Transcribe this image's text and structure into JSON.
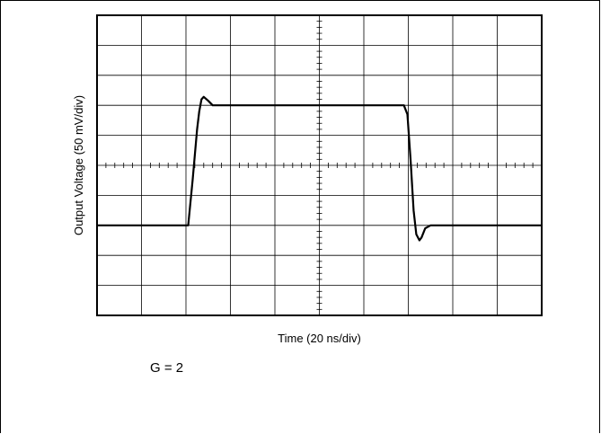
{
  "chart_data": {
    "type": "line",
    "title": "",
    "xlabel": "Time (20 ns/div)",
    "ylabel": "Output Voltage (50 mV/div)",
    "xlim": [
      0,
      10
    ],
    "ylim": [
      -5,
      5
    ],
    "grid": true,
    "annotation": "G = 2",
    "series": [
      {
        "x": [
          0,
          2.05,
          2.15,
          2.25,
          2.3,
          2.35,
          2.4,
          2.5,
          2.6,
          2.8,
          3.0,
          6.9,
          6.98,
          7.05,
          7.12,
          7.18,
          7.25,
          7.3,
          7.38,
          7.5,
          7.65,
          8.0,
          10
        ],
        "y": [
          -2.0,
          -2.0,
          -0.5,
          1.2,
          1.8,
          2.2,
          2.28,
          2.15,
          2.0,
          2.0,
          2.0,
          2.0,
          1.7,
          0.2,
          -1.5,
          -2.3,
          -2.5,
          -2.4,
          -2.1,
          -2.0,
          -2.0,
          -2.0,
          -2.0
        ]
      }
    ]
  }
}
